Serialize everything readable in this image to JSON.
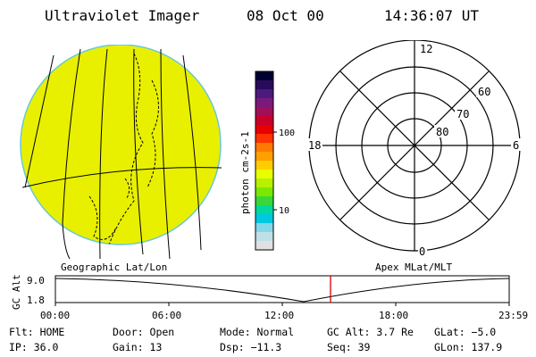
{
  "header": {
    "title": "Ultraviolet Imager",
    "date": "08 Oct 00",
    "time": "14:36:07 UT"
  },
  "colorbar": {
    "unit_label": "photon cm-2s-1",
    "tick_100": "100",
    "tick_10": "10",
    "colors": [
      "#000033",
      "#2a0a5a",
      "#4b1a7a",
      "#7a1a7a",
      "#a0105a",
      "#c8002a",
      "#e80000",
      "#ff3300",
      "#ff7a00",
      "#ffa000",
      "#ffcc00",
      "#e8ff00",
      "#b8f000",
      "#7ae800",
      "#38d83a",
      "#00d8a0",
      "#00c8e0",
      "#80d8e8",
      "#c0e0e8",
      "#e0e0e0"
    ]
  },
  "polar": {
    "label_12": "12",
    "label_18": "18",
    "label_6": "6",
    "label_0": "0",
    "label_60": "60",
    "label_70": "70",
    "label_80": "80"
  },
  "labels": {
    "geographic": "Geographic Lat/Lon",
    "apex": "Apex MLat/MLT"
  },
  "altitude_plot": {
    "axis_label": "GC Alt",
    "y_top": "9.0",
    "y_bottom": "1.8",
    "x_ticks": [
      "00:00",
      "06:00",
      "12:00",
      "18:00",
      "23:59"
    ]
  },
  "footer": {
    "flt": "Flt: HOME",
    "ip": "IP: 36.0",
    "door": "Door: Open",
    "gain": "Gain: 13",
    "mode": "Mode: Normal",
    "dsp": "Dsp: −11.3",
    "gc_alt": "GC Alt: 3.7 Re",
    "seq": "Seq: 39",
    "glat": "GLat: −5.0",
    "glon": "GLon: 137.9"
  }
}
